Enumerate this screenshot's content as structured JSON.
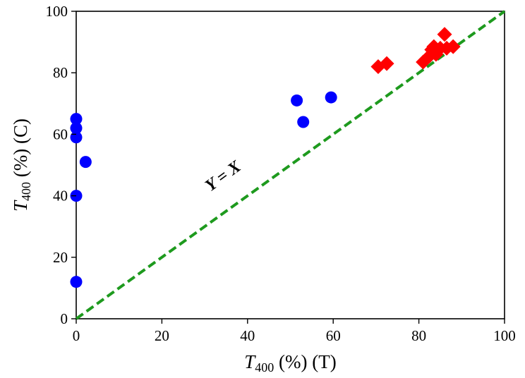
{
  "chart_data": {
    "type": "scatter",
    "xlabel": {
      "italic": "T",
      "sub": "400",
      "rest": " (%) (T)"
    },
    "ylabel": {
      "italic": "T",
      "sub": "400",
      "rest": " (%) (C)"
    },
    "xlim": [
      0,
      100
    ],
    "ylim": [
      0,
      100
    ],
    "xticks": [
      0,
      20,
      40,
      60,
      80,
      100
    ],
    "yticks": [
      0,
      20,
      40,
      60,
      80,
      100
    ],
    "grid": false,
    "series": [
      {
        "marker": "circle",
        "color": "#0000ff",
        "points": [
          [
            0,
            65
          ],
          [
            0,
            62
          ],
          [
            0,
            59
          ],
          [
            0,
            40
          ],
          [
            0,
            12
          ],
          [
            2.2,
            51
          ],
          [
            51.5,
            71
          ],
          [
            53,
            64
          ],
          [
            59.5,
            72
          ]
        ]
      },
      {
        "marker": "diamond",
        "color": "#ff0000",
        "points": [
          [
            70.5,
            82
          ],
          [
            72.5,
            83
          ],
          [
            81,
            83.5
          ],
          [
            82.5,
            85.5
          ],
          [
            83,
            87.5
          ],
          [
            83.5,
            88.5
          ],
          [
            84,
            86
          ],
          [
            85,
            88
          ],
          [
            86,
            92.5
          ],
          [
            86.5,
            88
          ],
          [
            88,
            88.5
          ]
        ]
      }
    ],
    "reference_line": {
      "from": [
        0,
        0
      ],
      "to": [
        100,
        100
      ],
      "color": "#1e9a1e",
      "style": "dashed"
    },
    "annotations": [
      {
        "text": "Y = X",
        "x": 35,
        "y": 45,
        "rotate": -36
      }
    ]
  }
}
